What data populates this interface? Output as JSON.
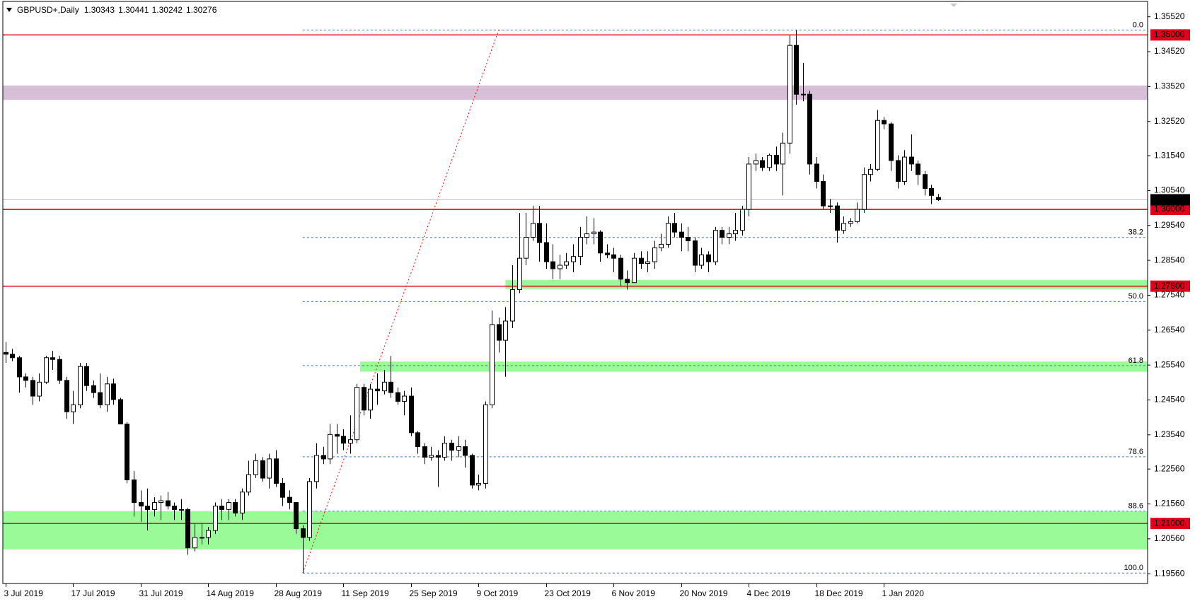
{
  "chart_data": {
    "type": "candlestick",
    "title": "GBPUSD+,Daily",
    "xlim": [
      -0.37,
      169
    ],
    "ylim": [
      1.1928,
      1.3596
    ],
    "xticks": [
      {
        "value": 0,
        "label": "3 Jul 2019"
      },
      {
        "value": 10,
        "label": "17 Jul 2019"
      },
      {
        "value": 20,
        "label": "31 Jul 2019"
      },
      {
        "value": 30,
        "label": "14 Aug 2019"
      },
      {
        "value": 40,
        "label": "28 Aug 2019"
      },
      {
        "value": 50,
        "label": "11 Sep 2019"
      },
      {
        "value": 60,
        "label": "25 Sep 2019"
      },
      {
        "value": 70,
        "label": "9 Oct 2019"
      },
      {
        "value": 80,
        "label": "23 Oct 2019"
      },
      {
        "value": 90,
        "label": "6 Nov 2019"
      },
      {
        "value": 100,
        "label": "20 Nov 2019"
      },
      {
        "value": 110,
        "label": "4 Dec 2019"
      },
      {
        "value": 120,
        "label": "18 Dec 2019"
      },
      {
        "value": 130,
        "label": "1 Jan 2020"
      }
    ],
    "yticks": [
      {
        "value": 1.3552,
        "label": "1.35520"
      },
      {
        "value": 1.3452,
        "label": "1.34520"
      },
      {
        "value": 1.3352,
        "label": "1.33520"
      },
      {
        "value": 1.3252,
        "label": "1.32520"
      },
      {
        "value": 1.3154,
        "label": "1.31540"
      },
      {
        "value": 1.3054,
        "label": "1.30540"
      },
      {
        "value": 1.2954,
        "label": "1.29540"
      },
      {
        "value": 1.2854,
        "label": "1.28540"
      },
      {
        "value": 1.2754,
        "label": "1.27540"
      },
      {
        "value": 1.2654,
        "label": "1.26540"
      },
      {
        "value": 1.2554,
        "label": "1.25540"
      },
      {
        "value": 1.2454,
        "label": "1.24540"
      },
      {
        "value": 1.2354,
        "label": "1.23540"
      },
      {
        "value": 1.2256,
        "label": "1.22560"
      },
      {
        "value": 1.2156,
        "label": "1.21560"
      },
      {
        "value": 1.2056,
        "label": "1.20560"
      },
      {
        "value": 1.1956,
        "label": "1.19560"
      }
    ],
    "up_color": "#ffffff",
    "down_color": "#000000",
    "zones": [
      {
        "from": 1.3355,
        "to": 1.3314,
        "color": "#d8bfd8"
      },
      {
        "from": 1.2798,
        "to": 1.2772,
        "start": 74,
        "color": "#98fb98"
      },
      {
        "from": 1.2564,
        "to": 1.2535,
        "start": 52.5,
        "color": "#98fb98"
      },
      {
        "from": 1.2135,
        "to": 1.2026,
        "color": "#98fb98"
      }
    ],
    "levels": [
      {
        "value": 1.35,
        "label": "1.35000"
      },
      {
        "value": 1.3,
        "label": "1.30000"
      },
      {
        "value": 1.278,
        "label": "1.27800"
      },
      {
        "value": 1.21,
        "label": "1.21000"
      }
    ],
    "level_color": "#e0001b",
    "fibonacci": {
      "from": 1.1958,
      "to": 1.3514,
      "start": 44,
      "end": 73,
      "color": "#4a7ab5",
      "levels": [
        {
          "value": 0,
          "label": "0.0"
        },
        38.2,
        {
          "value": 50,
          "label": "50.0"
        },
        61.8,
        78.6,
        88.6,
        {
          "value": 100,
          "label": "100.0"
        }
      ]
    },
    "candles": [
      [
        1.259,
        1.262,
        1.256,
        1.2585
      ],
      [
        1.2585,
        1.26,
        1.2565,
        1.2575
      ],
      [
        1.2575,
        1.258,
        1.2475,
        1.252
      ],
      [
        1.252,
        1.253,
        1.249,
        1.251
      ],
      [
        1.251,
        1.252,
        1.244,
        1.2465
      ],
      [
        1.2465,
        1.253,
        1.245,
        1.2505
      ],
      [
        1.2505,
        1.258,
        1.25,
        1.2575
      ],
      [
        1.2575,
        1.2595,
        1.254,
        1.257
      ],
      [
        1.257,
        1.258,
        1.25,
        1.251
      ],
      [
        1.251,
        1.252,
        1.24,
        1.242
      ],
      [
        1.242,
        1.248,
        1.2385,
        1.244
      ],
      [
        1.244,
        1.256,
        1.243,
        1.255
      ],
      [
        1.255,
        1.256,
        1.248,
        1.2495
      ],
      [
        1.2495,
        1.251,
        1.246,
        1.2475
      ],
      [
        1.2475,
        1.253,
        1.243,
        1.244
      ],
      [
        1.244,
        1.252,
        1.242,
        1.25
      ],
      [
        1.25,
        1.2515,
        1.244,
        1.2455
      ],
      [
        1.2455,
        1.246,
        1.2385,
        1.2385
      ],
      [
        1.2385,
        1.239,
        1.2215,
        1.2225
      ],
      [
        1.2225,
        1.225,
        1.212,
        1.216
      ],
      [
        1.216,
        1.2195,
        1.2105,
        1.215
      ],
      [
        1.215,
        1.22,
        1.208,
        1.214
      ],
      [
        1.214,
        1.2175,
        1.212,
        1.216
      ],
      [
        1.216,
        1.218,
        1.211,
        1.2165
      ],
      [
        1.2165,
        1.219,
        1.214,
        1.215
      ],
      [
        1.215,
        1.216,
        1.211,
        1.214
      ],
      [
        1.214,
        1.217,
        1.211,
        1.214
      ],
      [
        1.214,
        1.2145,
        1.201,
        1.203
      ],
      [
        1.203,
        1.21,
        1.202,
        1.206
      ],
      [
        1.206,
        1.21,
        1.204,
        1.206
      ],
      [
        1.206,
        1.209,
        1.204,
        1.208
      ],
      [
        1.208,
        1.216,
        1.207,
        1.215
      ],
      [
        1.215,
        1.217,
        1.211,
        1.214
      ],
      [
        1.214,
        1.217,
        1.211,
        1.216
      ],
      [
        1.216,
        1.217,
        1.212,
        1.213
      ],
      [
        1.213,
        1.22,
        1.211,
        1.219
      ],
      [
        1.219,
        1.228,
        1.218,
        1.224
      ],
      [
        1.224,
        1.23,
        1.223,
        1.228
      ],
      [
        1.228,
        1.229,
        1.222,
        1.223
      ],
      [
        1.223,
        1.23,
        1.22,
        1.2285
      ],
      [
        1.2285,
        1.231,
        1.2205,
        1.2215
      ],
      [
        1.2215,
        1.223,
        1.215,
        1.2175
      ],
      [
        1.2175,
        1.2195,
        1.214,
        1.216
      ],
      [
        1.216,
        1.216,
        1.207,
        1.2085
      ],
      [
        1.2085,
        1.2095,
        1.1958,
        1.206
      ],
      [
        1.206,
        1.223,
        1.205,
        1.222
      ],
      [
        1.222,
        1.233,
        1.22,
        1.2295
      ],
      [
        1.2295,
        1.232,
        1.227,
        1.2285
      ],
      [
        1.2285,
        1.2385,
        1.227,
        1.2355
      ],
      [
        1.2355,
        1.2385,
        1.23,
        1.235
      ],
      [
        1.235,
        1.237,
        1.231,
        1.233
      ],
      [
        1.233,
        1.241,
        1.23,
        1.234
      ],
      [
        1.234,
        1.25,
        1.233,
        1.249
      ],
      [
        1.249,
        1.25,
        1.241,
        1.2425
      ],
      [
        1.2425,
        1.25,
        1.24,
        1.2485
      ],
      [
        1.2485,
        1.253,
        1.244,
        1.248
      ],
      [
        1.248,
        1.254,
        1.247,
        1.2505
      ],
      [
        1.2505,
        1.258,
        1.246,
        1.2475
      ],
      [
        1.2475,
        1.249,
        1.244,
        1.245
      ],
      [
        1.245,
        1.248,
        1.241,
        1.2465
      ],
      [
        1.2465,
        1.249,
        1.235,
        1.236
      ],
      [
        1.236,
        1.2365,
        1.23,
        1.232
      ],
      [
        1.232,
        1.233,
        1.227,
        1.229
      ],
      [
        1.229,
        1.232,
        1.228,
        1.2295
      ],
      [
        1.2295,
        1.231,
        1.2205,
        1.229
      ],
      [
        1.229,
        1.235,
        1.228,
        1.233
      ],
      [
        1.233,
        1.234,
        1.228,
        1.231
      ],
      [
        1.231,
        1.235,
        1.229,
        1.232
      ],
      [
        1.232,
        1.234,
        1.226,
        1.2295
      ],
      [
        1.2295,
        1.23,
        1.22,
        1.221
      ],
      [
        1.221,
        1.224,
        1.2195,
        1.2215
      ],
      [
        1.2215,
        1.245,
        1.22,
        1.244
      ],
      [
        1.244,
        1.271,
        1.243,
        1.267
      ],
      [
        1.267,
        1.269,
        1.259,
        1.2625
      ],
      [
        1.2625,
        1.272,
        1.252,
        1.268
      ],
      [
        1.268,
        1.284,
        1.266,
        1.277
      ],
      [
        1.277,
        1.299,
        1.276,
        1.286
      ],
      [
        1.286,
        1.299,
        1.284,
        1.292
      ],
      [
        1.292,
        1.301,
        1.291,
        1.296
      ],
      [
        1.296,
        1.301,
        1.285,
        1.2905
      ],
      [
        1.2905,
        1.296,
        1.283,
        1.285
      ],
      [
        1.285,
        1.29,
        1.28,
        1.283
      ],
      [
        1.283,
        1.287,
        1.28,
        1.284
      ],
      [
        1.284,
        1.2875,
        1.283,
        1.285
      ],
      [
        1.285,
        1.29,
        1.282,
        1.2865
      ],
      [
        1.2865,
        1.295,
        1.284,
        1.292
      ],
      [
        1.292,
        1.298,
        1.29,
        1.293
      ],
      [
        1.293,
        1.2975,
        1.29,
        1.2935
      ],
      [
        1.2935,
        1.294,
        1.285,
        1.2875
      ],
      [
        1.2875,
        1.29,
        1.286,
        1.287
      ],
      [
        1.287,
        1.289,
        1.282,
        1.286
      ],
      [
        1.286,
        1.287,
        1.278,
        1.28
      ],
      [
        1.28,
        1.2825,
        1.277,
        1.279
      ],
      [
        1.279,
        1.2875,
        1.279,
        1.286
      ],
      [
        1.286,
        1.288,
        1.283,
        1.2845
      ],
      [
        1.2845,
        1.288,
        1.282,
        1.285
      ],
      [
        1.285,
        1.291,
        1.283,
        1.289
      ],
      [
        1.289,
        1.293,
        1.288,
        1.29
      ],
      [
        1.29,
        1.298,
        1.289,
        1.296
      ],
      [
        1.296,
        1.299,
        1.292,
        1.2935
      ],
      [
        1.2935,
        1.296,
        1.288,
        1.292
      ],
      [
        1.292,
        1.295,
        1.288,
        1.291
      ],
      [
        1.291,
        1.292,
        1.282,
        1.284
      ],
      [
        1.284,
        1.289,
        1.283,
        1.287
      ],
      [
        1.287,
        1.288,
        1.282,
        1.285
      ],
      [
        1.285,
        1.295,
        1.284,
        1.294
      ],
      [
        1.294,
        1.295,
        1.29,
        1.292
      ],
      [
        1.292,
        1.295,
        1.29,
        1.293
      ],
      [
        1.293,
        1.299,
        1.291,
        1.294
      ],
      [
        1.294,
        1.301,
        1.2925,
        1.3
      ],
      [
        1.3,
        1.315,
        1.298,
        1.313
      ],
      [
        1.313,
        1.316,
        1.311,
        1.314
      ],
      [
        1.314,
        1.315,
        1.311,
        1.312
      ],
      [
        1.312,
        1.316,
        1.311,
        1.3155
      ],
      [
        1.3155,
        1.318,
        1.311,
        1.313
      ],
      [
        1.313,
        1.322,
        1.304,
        1.319
      ],
      [
        1.319,
        1.35,
        1.316,
        1.347
      ],
      [
        1.347,
        1.3514,
        1.33,
        1.333
      ],
      [
        1.333,
        1.342,
        1.331,
        1.333
      ],
      [
        1.333,
        1.334,
        1.31,
        1.313
      ],
      [
        1.313,
        1.315,
        1.306,
        1.308
      ],
      [
        1.308,
        1.31,
        1.3,
        1.301
      ],
      [
        1.301,
        1.303,
        1.299,
        1.301
      ],
      [
        1.301,
        1.302,
        1.2905,
        1.294
      ],
      [
        1.294,
        1.298,
        1.293,
        1.296
      ],
      [
        1.296,
        1.2975,
        1.295,
        1.2965
      ],
      [
        1.2965,
        1.302,
        1.296,
        1.3
      ],
      [
        1.3,
        1.312,
        1.299,
        1.31
      ],
      [
        1.31,
        1.313,
        1.308,
        1.3115
      ],
      [
        1.3115,
        1.3285,
        1.311,
        1.3255
      ],
      [
        1.3255,
        1.3265,
        1.323,
        1.3245
      ],
      [
        1.3245,
        1.325,
        1.311,
        1.314
      ],
      [
        1.314,
        1.3155,
        1.306,
        1.308
      ],
      [
        1.308,
        1.317,
        1.307,
        1.315
      ],
      [
        1.315,
        1.3215,
        1.311,
        1.313
      ],
      [
        1.313,
        1.314,
        1.307,
        1.31
      ],
      [
        1.31,
        1.311,
        1.304,
        1.306
      ],
      [
        1.306,
        1.307,
        1.3015,
        1.304
      ],
      [
        1.30343,
        1.30441,
        1.30242,
        1.30276
      ]
    ]
  }
}
